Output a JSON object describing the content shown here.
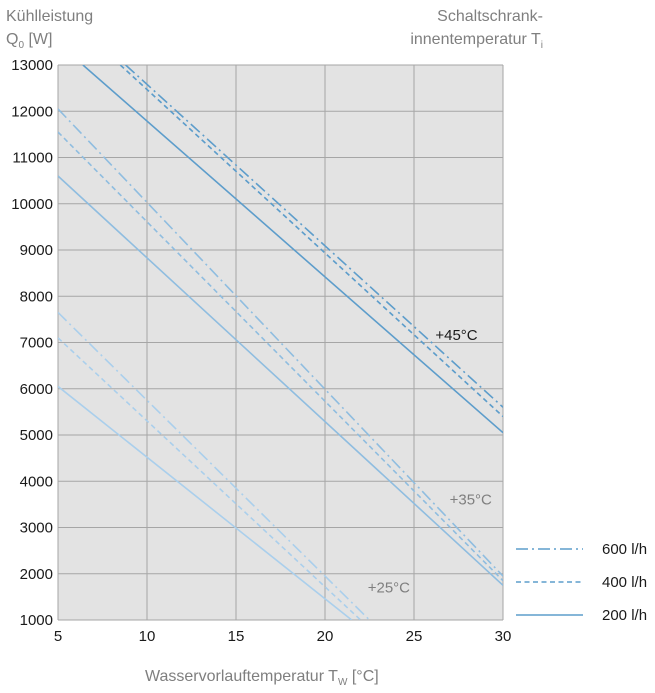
{
  "chart_data": {
    "type": "line",
    "ylabel_line1": "Kühlleistung",
    "ylabel_line2_main": "Q",
    "ylabel_line2_sub": "0",
    "ylabel_line2_unit": " [W]",
    "legend_title_line1": "Schaltschrank-",
    "legend_title_line2_main": "innentemperatur T",
    "legend_title_line2_sub": "i",
    "xlabel_main": "Wasservorlauftemperatur T",
    "xlabel_sub": "W",
    "xlabel_unit": " [°C]",
    "xlim": [
      5,
      30
    ],
    "ylim": [
      1000,
      13000
    ],
    "xticks": [
      "5",
      "10",
      "15",
      "20",
      "25",
      "30"
    ],
    "yticks": [
      "1000",
      "2000",
      "3000",
      "4000",
      "5000",
      "6000",
      "7000",
      "8000",
      "9000",
      "10000",
      "11000",
      "12000",
      "13000"
    ],
    "grid": true,
    "legend": [
      {
        "label": "600 l/h",
        "style": "dashdot"
      },
      {
        "label": "400 l/h",
        "style": "dashed"
      },
      {
        "label": "200 l/h",
        "style": "solid"
      }
    ],
    "annotations": [
      {
        "text": "+45°C",
        "x": 26.2,
        "y": 7050
      },
      {
        "text": "+35°C",
        "x": 27.0,
        "y": 3500
      },
      {
        "text": "+25°C",
        "x": 22.4,
        "y": 1600
      }
    ],
    "series": [
      {
        "group": "+45°C",
        "flow": "600 l/h",
        "style": "dashdot",
        "x": [
          8.8,
          30
        ],
        "y": [
          13000,
          5600
        ]
      },
      {
        "group": "+45°C",
        "flow": "400 l/h",
        "style": "dashed",
        "x": [
          8.5,
          30
        ],
        "y": [
          13000,
          5400
        ]
      },
      {
        "group": "+45°C",
        "flow": "200 l/h",
        "style": "solid",
        "x": [
          6.4,
          30
        ],
        "y": [
          13000,
          5050
        ]
      },
      {
        "group": "+35°C",
        "flow": "600 l/h",
        "style": "dashdot",
        "x": [
          5,
          30
        ],
        "y": [
          12050,
          1950
        ]
      },
      {
        "group": "+35°C",
        "flow": "400 l/h",
        "style": "dashed",
        "x": [
          5,
          30
        ],
        "y": [
          11550,
          1850
        ]
      },
      {
        "group": "+35°C",
        "flow": "200 l/h",
        "style": "solid",
        "x": [
          5,
          30
        ],
        "y": [
          10600,
          1750
        ]
      },
      {
        "group": "+25°C",
        "flow": "600 l/h",
        "style": "dashdot",
        "x": [
          5,
          22.5
        ],
        "y": [
          7650,
          1000
        ]
      },
      {
        "group": "+25°C",
        "flow": "400 l/h",
        "style": "dashed",
        "x": [
          5,
          22.0
        ],
        "y": [
          7100,
          1000
        ]
      },
      {
        "group": "+25°C",
        "flow": "200 l/h",
        "style": "solid",
        "x": [
          5,
          21.5
        ],
        "y": [
          6050,
          1000
        ]
      }
    ]
  },
  "colors": {
    "plot_bg": "#e3e3e3",
    "grid": "#a6a6a6",
    "line_45": "#5d9dcb",
    "line_35": "#8fbde0",
    "line_25": "#aacfec",
    "legend_line": "#5d9dcb",
    "gray_text": "#7f7f7f",
    "dark_text": "#1a1a1a"
  }
}
